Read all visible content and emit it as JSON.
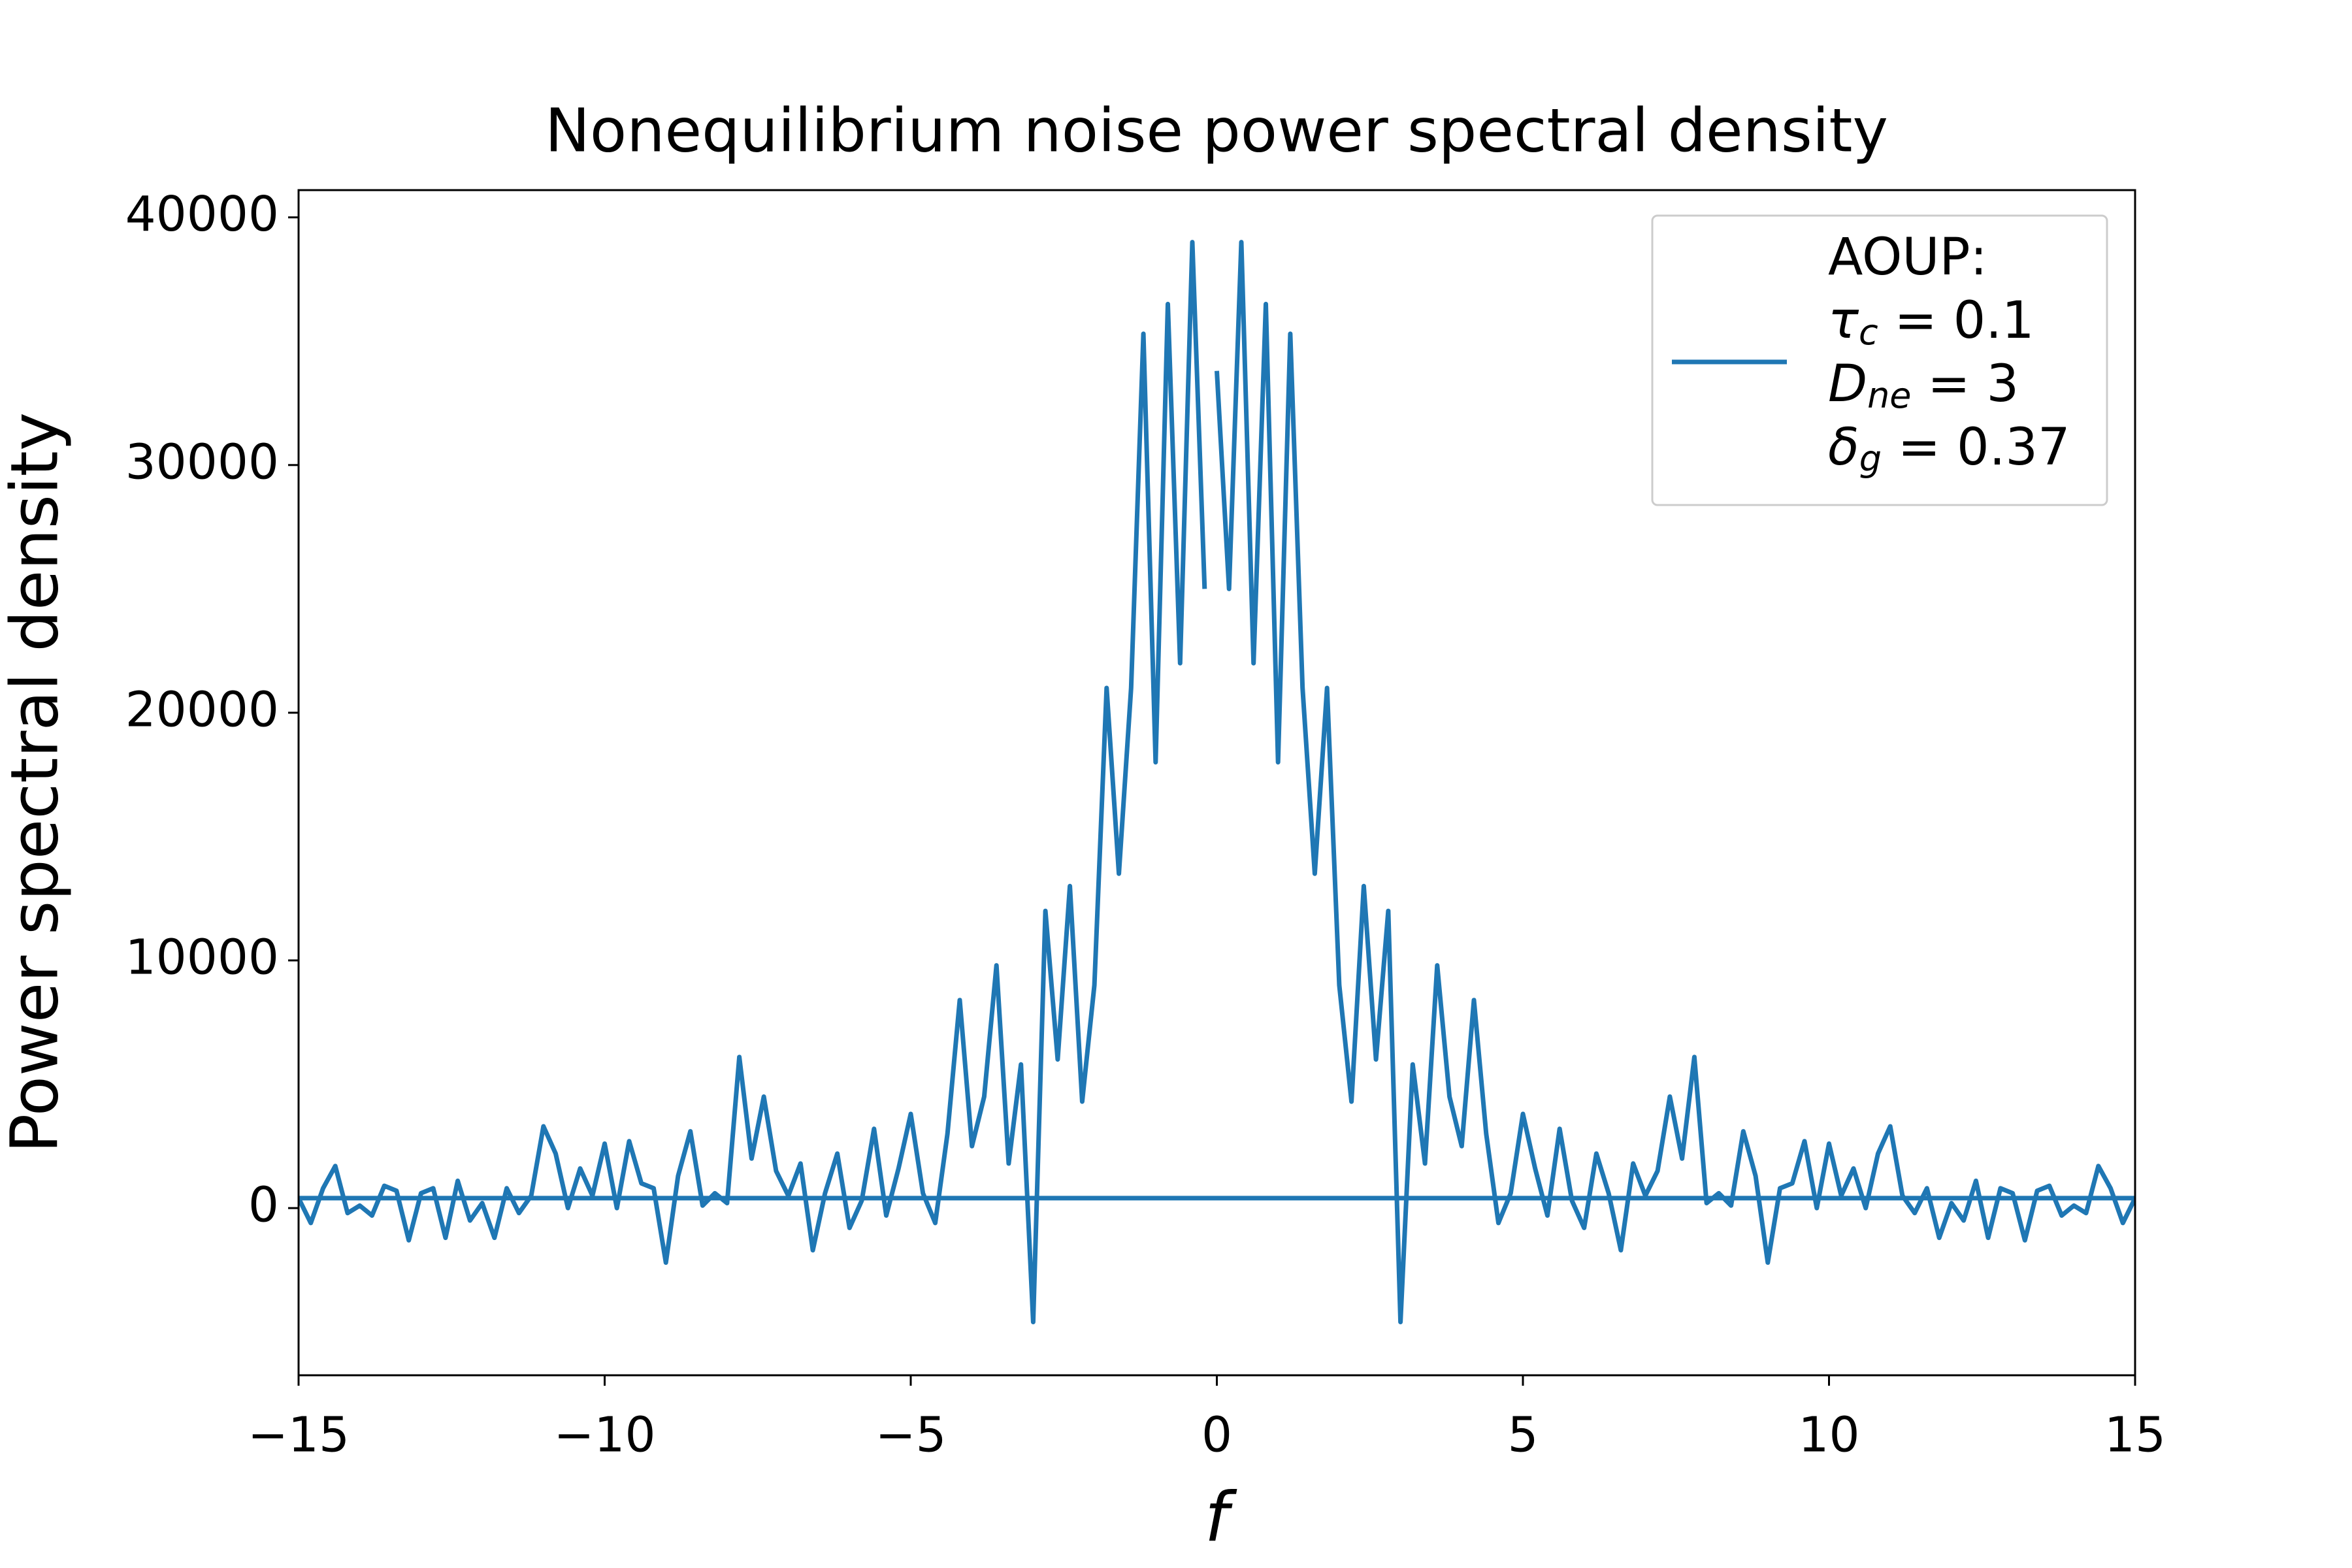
{
  "chart_data": {
    "type": "line",
    "title": "Nonequilibrium noise power spectral density",
    "xlabel": "f",
    "ylabel": "Power spectral density",
    "xlim": [
      -15,
      15
    ],
    "ylim": [
      -6750,
      41100
    ],
    "xticks": [
      {
        "value": -15,
        "label": "−15"
      },
      {
        "value": -10,
        "label": "−10"
      },
      {
        "value": -5,
        "label": "−5"
      },
      0,
      5,
      10,
      15
    ],
    "yticks": [
      0,
      10000,
      20000,
      30000,
      40000
    ],
    "legend_position": "upper right",
    "legend_lines": [
      {
        "text": "AOUP:"
      },
      {
        "symbol": "τ",
        "sub": "c",
        "text": " = 0.1"
      },
      {
        "symbol": "D",
        "sub": "ne",
        "text": " = 3"
      },
      {
        "symbol": "δ",
        "sub": "g",
        "text": " = 0.37"
      }
    ],
    "series": [
      {
        "color": "#1f77b4",
        "x": [
          0,
          0.2,
          0.4,
          0.6,
          0.8,
          1.0,
          1.2,
          1.4,
          1.6,
          1.8,
          2.0,
          2.2,
          2.4,
          2.6,
          2.8,
          3.0,
          3.2,
          3.4,
          3.6,
          3.8,
          4.0,
          4.2,
          4.4,
          4.6,
          4.8,
          5.0,
          5.2,
          5.4,
          5.6,
          5.8,
          6.0,
          6.2,
          6.4,
          6.6,
          6.8,
          7.0,
          7.2,
          7.4,
          7.6,
          7.8,
          8.0,
          8.2,
          8.4,
          8.6,
          8.8,
          9.0,
          9.2,
          9.4,
          9.6,
          9.8,
          10.0,
          10.2,
          10.4,
          10.6,
          10.8,
          11.0,
          11.2,
          11.4,
          11.6,
          11.8,
          12.0,
          12.2,
          12.4,
          12.6,
          12.8,
          13.0,
          13.2,
          13.4,
          13.6,
          13.8,
          14.0,
          14.2,
          14.4,
          14.6,
          14.8,
          15.0,
          -15.0,
          -14.8,
          -14.6,
          -14.4,
          -14.2,
          -14.0,
          -13.8,
          -13.6,
          -13.4,
          -13.2,
          -13.0,
          -12.8,
          -12.6,
          -12.4,
          -12.2,
          -12.0,
          -11.8,
          -11.6,
          -11.4,
          -11.2,
          -11.0,
          -10.8,
          -10.6,
          -10.4,
          -10.2,
          -10.0,
          -9.8,
          -9.6,
          -9.4,
          -9.2,
          -9.0,
          -8.8,
          -8.6,
          -8.4,
          -8.2,
          -8.0,
          -7.8,
          -7.6,
          -7.4,
          -7.2,
          -7.0,
          -6.8,
          -6.6,
          -6.4,
          -6.2,
          -6.0,
          -5.8,
          -5.6,
          -5.4,
          -5.2,
          -5.0,
          -4.8,
          -4.6,
          -4.4,
          -4.2,
          -4.0,
          -3.8,
          -3.6,
          -3.4,
          -3.2,
          -3.0,
          -2.8,
          -2.6,
          -2.4,
          -2.2,
          -2.0,
          -1.8,
          -1.6,
          -1.4,
          -1.2,
          -1.0,
          -0.8,
          -0.6,
          -0.4,
          -0.2
        ],
        "values": [
          33800,
          25000,
          39000,
          22000,
          36500,
          18000,
          35300,
          21000,
          13500,
          21000,
          9000,
          4300,
          13000,
          6000,
          12000,
          -4600,
          5800,
          1800,
          9800,
          4500,
          2500,
          8400,
          3000,
          -600,
          600,
          3800,
          1600,
          -300,
          3200,
          300,
          -800,
          2200,
          600,
          -1700,
          1800,
          500,
          1500,
          4500,
          2000,
          6100,
          200,
          600,
          100,
          3100,
          1300,
          -2200,
          800,
          1000,
          2700,
          0,
          2600,
          500,
          1600,
          0,
          2200,
          3300,
          500,
          -200,
          800,
          -1200,
          200,
          -500,
          1100,
          -1200,
          800,
          600,
          -1300,
          700,
          900,
          -300,
          100,
          -200,
          1700,
          800,
          -600,
          400,
          400,
          -600,
          800,
          1700,
          -200,
          100,
          -300,
          900,
          700,
          -1300,
          600,
          800,
          -1200,
          1100,
          -500,
          200,
          -1200,
          800,
          -200,
          500,
          3300,
          2200,
          0,
          1600,
          500,
          2600,
          0,
          2700,
          1000,
          800,
          -2200,
          1300,
          3100,
          100,
          600,
          200,
          6100,
          2000,
          4500,
          1500,
          500,
          1800,
          -1700,
          600,
          2200,
          -800,
          300,
          3200,
          -300,
          1600,
          3800,
          600,
          -600,
          3000,
          8400,
          2500,
          4500,
          9800,
          1800,
          5800,
          -4600,
          12000,
          6000,
          13000,
          4300,
          9000,
          21000,
          13500,
          21000,
          35300,
          18000,
          36500,
          22000,
          39000,
          25000
        ]
      }
    ]
  }
}
